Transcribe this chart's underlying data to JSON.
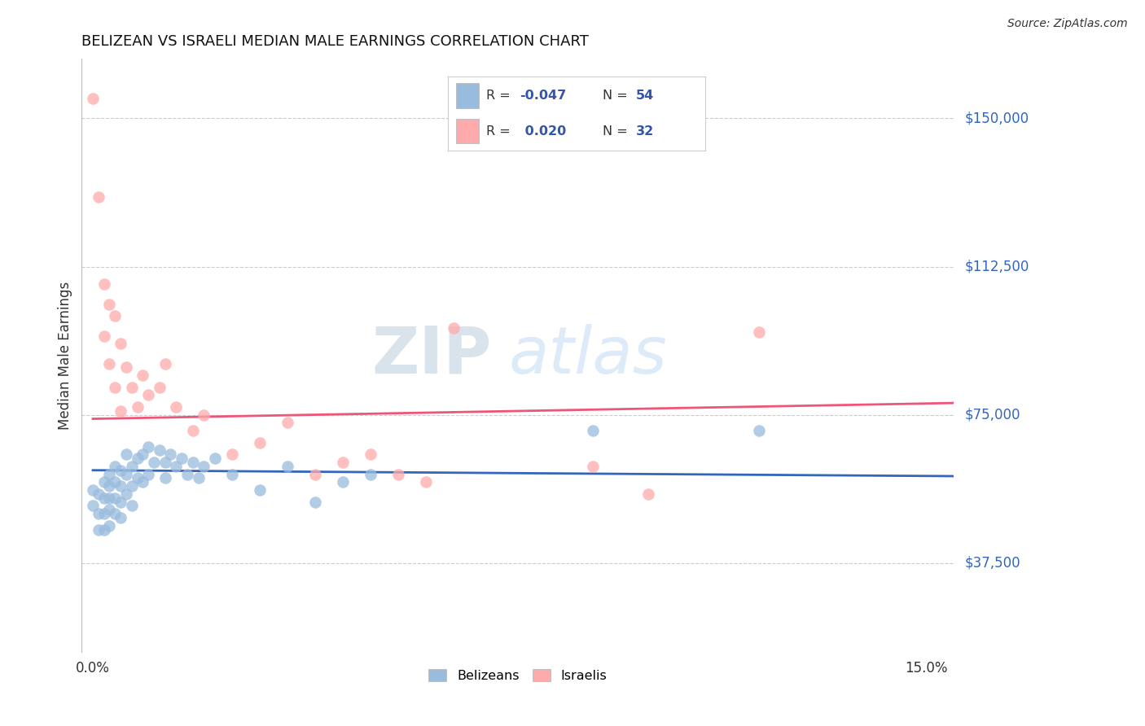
{
  "title": "BELIZEAN VS ISRAELI MEDIAN MALE EARNINGS CORRELATION CHART",
  "source": "Source: ZipAtlas.com",
  "ylabel": "Median Male Earnings",
  "ytick_labels": [
    "$37,500",
    "$75,000",
    "$112,500",
    "$150,000"
  ],
  "ytick_values": [
    37500,
    75000,
    112500,
    150000
  ],
  "ymin": 15000,
  "ymax": 165000,
  "xmin": -0.002,
  "xmax": 0.155,
  "watermark_zip": "ZIP",
  "watermark_atlas": "atlas",
  "blue_color": "#99BBDD",
  "pink_color": "#FFAAAA",
  "blue_line_color": "#3366BB",
  "pink_line_color": "#EE5577",
  "legend_r_color": "#3355AA",
  "belizean_x": [
    0.0,
    0.0,
    0.001,
    0.001,
    0.001,
    0.002,
    0.002,
    0.002,
    0.002,
    0.003,
    0.003,
    0.003,
    0.003,
    0.003,
    0.004,
    0.004,
    0.004,
    0.004,
    0.005,
    0.005,
    0.005,
    0.005,
    0.006,
    0.006,
    0.006,
    0.007,
    0.007,
    0.007,
    0.008,
    0.008,
    0.009,
    0.009,
    0.01,
    0.01,
    0.011,
    0.012,
    0.013,
    0.013,
    0.014,
    0.015,
    0.016,
    0.017,
    0.018,
    0.019,
    0.02,
    0.022,
    0.025,
    0.03,
    0.035,
    0.04,
    0.045,
    0.05,
    0.09,
    0.12
  ],
  "belizean_y": [
    56000,
    52000,
    55000,
    50000,
    46000,
    58000,
    54000,
    50000,
    46000,
    60000,
    57000,
    54000,
    51000,
    47000,
    62000,
    58000,
    54000,
    50000,
    61000,
    57000,
    53000,
    49000,
    65000,
    60000,
    55000,
    62000,
    57000,
    52000,
    64000,
    59000,
    65000,
    58000,
    67000,
    60000,
    63000,
    66000,
    63000,
    59000,
    65000,
    62000,
    64000,
    60000,
    63000,
    59000,
    62000,
    64000,
    60000,
    56000,
    62000,
    53000,
    58000,
    60000,
    71000,
    71000
  ],
  "israeli_x": [
    0.0,
    0.001,
    0.002,
    0.002,
    0.003,
    0.003,
    0.004,
    0.004,
    0.005,
    0.005,
    0.006,
    0.007,
    0.008,
    0.009,
    0.01,
    0.012,
    0.013,
    0.015,
    0.018,
    0.02,
    0.025,
    0.03,
    0.035,
    0.04,
    0.045,
    0.05,
    0.055,
    0.06,
    0.065,
    0.09,
    0.1,
    0.12
  ],
  "israeli_y": [
    155000,
    130000,
    108000,
    95000,
    103000,
    88000,
    100000,
    82000,
    93000,
    76000,
    87000,
    82000,
    77000,
    85000,
    80000,
    82000,
    88000,
    77000,
    71000,
    75000,
    65000,
    68000,
    73000,
    60000,
    63000,
    65000,
    60000,
    58000,
    97000,
    62000,
    55000,
    96000
  ],
  "blue_trend": [
    0.0,
    0.155,
    61000,
    59500
  ],
  "pink_trend": [
    0.0,
    0.155,
    74000,
    78000
  ]
}
